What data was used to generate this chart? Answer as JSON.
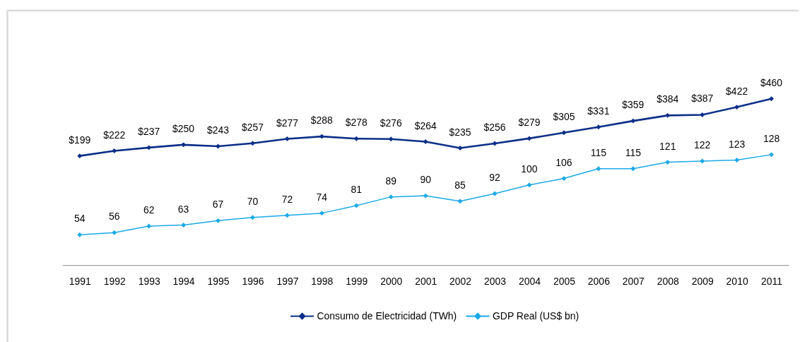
{
  "chart_data": {
    "type": "line",
    "categories": [
      "1991",
      "1992",
      "1993",
      "1994",
      "1995",
      "1996",
      "1997",
      "1998",
      "1999",
      "2000",
      "2001",
      "2002",
      "2003",
      "2004",
      "2005",
      "2006",
      "2007",
      "2008",
      "2009",
      "2010",
      "2011"
    ],
    "series": [
      {
        "name": "Consumo de Electricidad (TWh)",
        "color": "#0b2f88",
        "values": [
          199,
          222,
          237,
          250,
          243,
          257,
          277,
          288,
          278,
          276,
          264,
          235,
          256,
          279,
          305,
          331,
          359,
          384,
          387,
          422,
          460
        ],
        "value_labels": [
          "$199",
          "$222",
          "$237",
          "$250",
          "$243",
          "$257",
          "$277",
          "$288",
          "$278",
          "$276",
          "$264",
          "$235",
          "$256",
          "$279",
          "$305",
          "$331",
          "$359",
          "$384",
          "$387",
          "$422",
          "$460"
        ]
      },
      {
        "name": "GDP Real (US$ bn)",
        "color": "#1ba9e6",
        "axis": "y2",
        "values": [
          54,
          56,
          62,
          63,
          67,
          70,
          72,
          74,
          81,
          89,
          90,
          85,
          92,
          100,
          106,
          115,
          115,
          121,
          122,
          123,
          128
        ],
        "value_labels": [
          "54",
          "56",
          "62",
          "63",
          "67",
          "70",
          "72",
          "74",
          "81",
          "89",
          "90",
          "85",
          "92",
          "100",
          "106",
          "115",
          "115",
          "121",
          "122",
          "123",
          "128"
        ]
      }
    ],
    "ylim": [
      -300,
      863
    ],
    "y2lim": [
      26,
      261
    ],
    "tick_labels": "x",
    "marker": "diamond",
    "line_style": "solid",
    "legend": "bottom",
    "grid": false
  }
}
